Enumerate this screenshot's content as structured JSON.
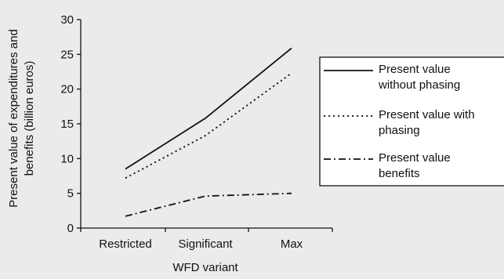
{
  "chart_data": {
    "type": "line",
    "categories": [
      "Restricted",
      "Significant",
      "Max"
    ],
    "series": [
      {
        "name": "Present value without phasing",
        "values": [
          8.5,
          15.8,
          25.9
        ],
        "line_style": "solid"
      },
      {
        "name": "Present value with phasing",
        "values": [
          7.2,
          13.3,
          22.3
        ],
        "line_style": "dotted"
      },
      {
        "name": "Present value benefits",
        "values": [
          1.7,
          4.6,
          5.0
        ],
        "line_style": "dash-dot"
      }
    ],
    "title": "",
    "xlabel": "WFD variant",
    "ylabel": "Present value of expenditures and benefits (billion euros)",
    "ylabel_lines": [
      "Present value of expenditures and",
      "benefits (billion euros)"
    ],
    "ylim": [
      0,
      30
    ],
    "yticks": [
      0,
      5,
      10,
      15,
      20,
      25,
      30
    ],
    "grid": false,
    "legend_position": "right",
    "legend": [
      {
        "lines": [
          "Present value",
          "without phasing"
        ]
      },
      {
        "lines": [
          "Present value with",
          "phasing"
        ]
      },
      {
        "lines": [
          "Present value",
          "benefits"
        ]
      }
    ],
    "colors": {
      "line": "#111111",
      "background": "#ebebeb",
      "legend_box": "#ffffff"
    }
  }
}
